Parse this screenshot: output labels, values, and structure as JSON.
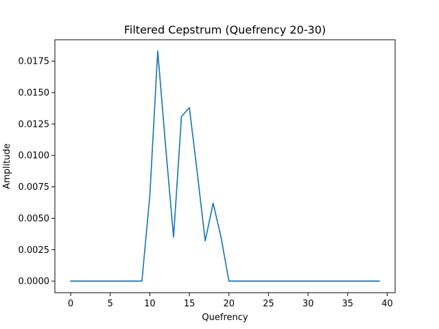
{
  "chart_data": {
    "type": "line",
    "title": "Filtered Cepstrum (Quefrency 20-30)",
    "xlabel": "Quefrency",
    "ylabel": "Amplitude",
    "xlim": [
      -2,
      41
    ],
    "ylim": [
      -0.00092,
      0.0192
    ],
    "xticks": [
      0,
      5,
      10,
      15,
      20,
      25,
      30,
      35,
      40
    ],
    "xtick_labels": [
      "0",
      "5",
      "10",
      "15",
      "20",
      "25",
      "30",
      "35",
      "40"
    ],
    "yticks": [
      0.0,
      0.0025,
      0.005,
      0.0075,
      0.01,
      0.0125,
      0.015,
      0.0175
    ],
    "ytick_labels": [
      "0.0000",
      "0.0025",
      "0.0050",
      "0.0075",
      "0.0100",
      "0.0125",
      "0.0150",
      "0.0175"
    ],
    "grid": false,
    "color": "#1f77b4",
    "series": [
      {
        "x": [
          0,
          1,
          2,
          3,
          4,
          5,
          6,
          7,
          8,
          9,
          10,
          11,
          12,
          13,
          14,
          15,
          16,
          17,
          18,
          19,
          20,
          21,
          22,
          23,
          24,
          25,
          26,
          27,
          28,
          29,
          30,
          31,
          32,
          33,
          34,
          35,
          36,
          37,
          38,
          39
        ],
        "values": [
          0,
          0,
          0,
          0,
          0,
          0,
          0,
          0,
          0,
          0,
          0.0068,
          0.0183,
          0.0107,
          0.0035,
          0.0131,
          0.0138,
          0.0086,
          0.0032,
          0.0062,
          0.0035,
          0,
          0,
          0,
          0,
          0,
          0,
          0,
          0,
          0,
          0,
          0,
          0,
          0,
          0,
          0,
          0,
          0,
          0,
          0,
          0
        ]
      }
    ]
  }
}
